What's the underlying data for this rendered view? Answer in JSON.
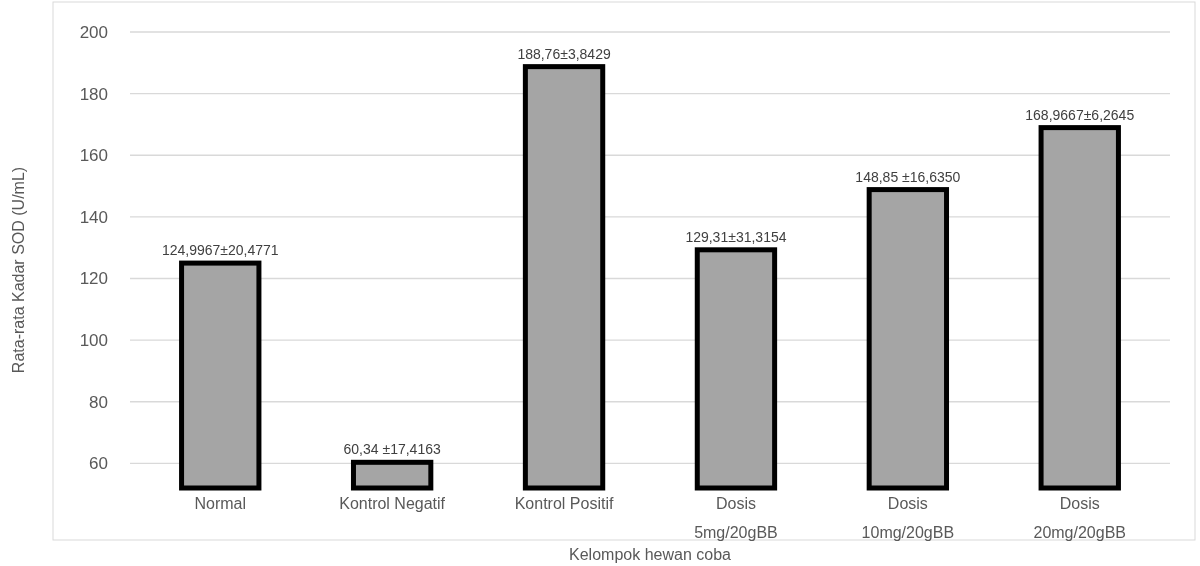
{
  "chart_data": {
    "type": "bar",
    "xlabel": "Kelompok hewan coba",
    "ylabel": "Rata-rata Kadar SOD (U/mL)",
    "categories": [
      "Normal",
      "Kontrol Negatif",
      "Kontrol Positif",
      "Dosis\n5mg/20gBB",
      "Dosis\n10mg/20gBB",
      "Dosis\n20mg/20gBB"
    ],
    "values": [
      124.9967,
      60.34,
      188.76,
      129.31,
      148.85,
      168.9667
    ],
    "value_labels": [
      "124,9967±20,4771",
      "60,34 ±17,4163",
      "188,76±3,8429",
      "129,31±31,3154",
      "148,85 ±16,6350",
      "168,9667±6,2645"
    ],
    "color": "#a5a5a5",
    "ylim": [
      52,
      200
    ],
    "yticks": [
      60,
      80,
      100,
      120,
      140,
      160,
      180,
      200
    ],
    "grid": "y"
  }
}
